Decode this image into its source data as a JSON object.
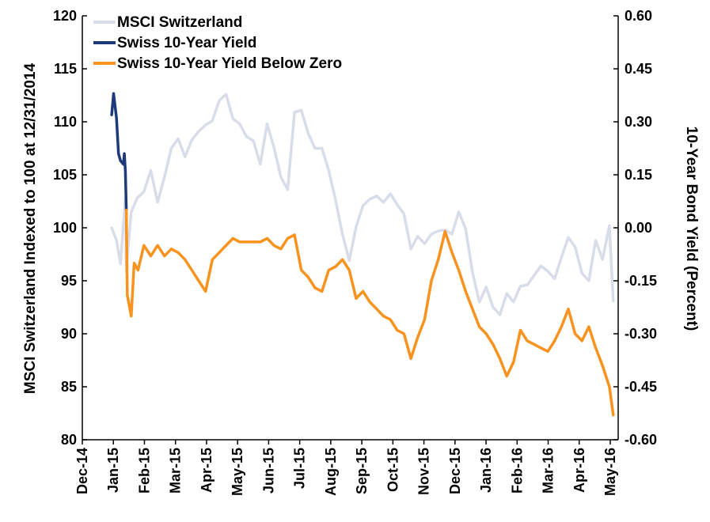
{
  "chart_data": {
    "type": "line",
    "ylabel": "MSCI Switzerland Indexed to 100 at 12/31/2014",
    "y2label": "10-Year Bond Yield  (Percent)",
    "ylim": [
      80,
      120
    ],
    "y2lim": [
      -0.6,
      0.6
    ],
    "y_ticks": [
      "120",
      "115",
      "110",
      "105",
      "100",
      "95",
      "90",
      "85",
      "80"
    ],
    "y2_ticks": [
      "0.60",
      "0.45",
      "0.30",
      "0.15",
      "0.00",
      "-0.15",
      "-0.30",
      "-0.45",
      "-0.60"
    ],
    "x_ticks": [
      "Dec-14",
      "Jan-15",
      "Feb-15",
      "Mar-15",
      "Apr-15",
      "May-15",
      "Jun-15",
      "Jul-15",
      "Aug-15",
      "Sep-15",
      "Oct-15",
      "Nov-15",
      "Dec-15",
      "Jan-16",
      "Feb-16",
      "Mar-16",
      "Apr-16",
      "May-16"
    ],
    "legend_position": "top-left",
    "grid": false,
    "colors": {
      "msci": "#d9dde9",
      "yield_pos": "#1f3a7a",
      "yield_neg": "#f7931e"
    },
    "series": [
      {
        "name": "MSCI Switzerland",
        "axis": "left",
        "x": [
          "2014-12-31",
          "2015-01-05",
          "2015-01-09",
          "2015-01-14",
          "2015-01-15",
          "2015-01-16",
          "2015-01-20",
          "2015-01-26",
          "2015-02-02",
          "2015-02-09",
          "2015-02-16",
          "2015-02-23",
          "2015-03-02",
          "2015-03-09",
          "2015-03-16",
          "2015-03-23",
          "2015-03-30",
          "2015-04-06",
          "2015-04-13",
          "2015-04-20",
          "2015-04-27",
          "2015-05-04",
          "2015-05-11",
          "2015-05-18",
          "2015-05-25",
          "2015-06-01",
          "2015-06-08",
          "2015-06-15",
          "2015-06-22",
          "2015-06-29",
          "2015-07-06",
          "2015-07-13",
          "2015-07-20",
          "2015-07-27",
          "2015-08-03",
          "2015-08-10",
          "2015-08-17",
          "2015-08-24",
          "2015-08-31",
          "2015-09-07",
          "2015-09-14",
          "2015-09-21",
          "2015-09-28",
          "2015-10-05",
          "2015-10-12",
          "2015-10-19",
          "2015-10-26",
          "2015-11-02",
          "2015-11-09",
          "2015-11-16",
          "2015-11-23",
          "2015-11-30",
          "2015-12-07",
          "2015-12-14",
          "2015-12-21",
          "2015-12-28",
          "2016-01-04",
          "2016-01-11",
          "2016-01-18",
          "2016-01-25",
          "2016-02-01",
          "2016-02-08",
          "2016-02-15",
          "2016-02-22",
          "2016-02-29",
          "2016-03-07",
          "2016-03-14",
          "2016-03-21",
          "2016-03-28",
          "2016-04-04",
          "2016-04-11",
          "2016-04-18",
          "2016-04-25",
          "2016-05-02",
          "2016-05-09",
          "2016-05-16",
          "2016-05-23",
          "2016-05-27"
        ],
        "values": [
          100.0,
          98.8,
          96.6,
          102.8,
          95.8,
          97.2,
          101.5,
          102.8,
          103.4,
          105.4,
          102.4,
          104.8,
          107.5,
          108.4,
          106.7,
          108.3,
          109.1,
          109.7,
          110.1,
          112.0,
          112.6,
          110.3,
          109.8,
          108.6,
          108.2,
          106.0,
          109.8,
          107.6,
          104.8,
          103.6,
          110.9,
          111.1,
          108.9,
          107.5,
          107.5,
          105.4,
          102.6,
          99.4,
          96.9,
          100.1,
          102.1,
          102.7,
          103.0,
          102.4,
          103.2,
          102.2,
          101.3,
          98.0,
          99.2,
          98.5,
          99.4,
          99.7,
          99.8,
          99.4,
          101.5,
          99.9,
          95.8,
          93.0,
          94.4,
          92.5,
          91.8,
          93.8,
          93.0,
          94.5,
          94.6,
          95.5,
          96.4,
          95.9,
          95.2,
          97.2,
          99.1,
          98.2,
          95.7,
          95.0,
          98.8,
          97.0,
          100.2,
          93.1
        ]
      },
      {
        "name": "Swiss 10-Year Yield",
        "axis": "right",
        "x": [
          "2014-12-31",
          "2015-01-02",
          "2015-01-05",
          "2015-01-07",
          "2015-01-09",
          "2015-01-12",
          "2015-01-13",
          "2015-01-14",
          "2015-01-15"
        ],
        "values": [
          0.32,
          0.38,
          0.31,
          0.21,
          0.19,
          0.18,
          0.21,
          0.16,
          0.05
        ]
      },
      {
        "name": "Swiss 10-Year Yield Below Zero",
        "axis": "right",
        "x": [
          "2015-01-16",
          "2015-01-20",
          "2015-01-23",
          "2015-01-27",
          "2015-02-02",
          "2015-02-09",
          "2015-02-16",
          "2015-02-23",
          "2015-03-02",
          "2015-03-09",
          "2015-03-16",
          "2015-03-23",
          "2015-03-30",
          "2015-04-06",
          "2015-04-13",
          "2015-04-20",
          "2015-04-27",
          "2015-05-04",
          "2015-05-11",
          "2015-05-18",
          "2015-05-25",
          "2015-06-01",
          "2015-06-08",
          "2015-06-15",
          "2015-06-22",
          "2015-06-29",
          "2015-07-06",
          "2015-07-13",
          "2015-07-20",
          "2015-07-27",
          "2015-08-03",
          "2015-08-10",
          "2015-08-17",
          "2015-08-24",
          "2015-08-31",
          "2015-09-07",
          "2015-09-14",
          "2015-09-21",
          "2015-09-28",
          "2015-10-05",
          "2015-10-12",
          "2015-10-19",
          "2015-10-26",
          "2015-11-02",
          "2015-11-09",
          "2015-11-16",
          "2015-11-23",
          "2015-11-30",
          "2015-12-07",
          "2015-12-14",
          "2015-12-21",
          "2015-12-28",
          "2016-01-04",
          "2016-01-11",
          "2016-01-18",
          "2016-01-25",
          "2016-02-01",
          "2016-02-08",
          "2016-02-15",
          "2016-02-22",
          "2016-02-29",
          "2016-03-07",
          "2016-03-14",
          "2016-03-21",
          "2016-03-28",
          "2016-04-04",
          "2016-04-11",
          "2016-04-18",
          "2016-04-25",
          "2016-05-02",
          "2016-05-09",
          "2016-05-16",
          "2016-05-23",
          "2016-05-27"
        ],
        "values": [
          -0.19,
          -0.25,
          -0.1,
          -0.12,
          -0.05,
          -0.08,
          -0.05,
          -0.08,
          -0.06,
          -0.07,
          -0.09,
          -0.12,
          -0.15,
          -0.18,
          -0.09,
          -0.07,
          -0.05,
          -0.03,
          -0.04,
          -0.04,
          -0.04,
          -0.04,
          -0.03,
          -0.05,
          -0.06,
          -0.03,
          -0.02,
          -0.12,
          -0.14,
          -0.17,
          -0.18,
          -0.12,
          -0.11,
          -0.09,
          -0.12,
          -0.2,
          -0.18,
          -0.21,
          -0.23,
          -0.25,
          -0.26,
          -0.29,
          -0.3,
          -0.37,
          -0.31,
          -0.26,
          -0.15,
          -0.09,
          -0.01,
          -0.07,
          -0.12,
          -0.18,
          -0.23,
          -0.28,
          -0.3,
          -0.33,
          -0.37,
          -0.42,
          -0.38,
          -0.29,
          -0.32,
          -0.33,
          -0.34,
          -0.35,
          -0.32,
          -0.28,
          -0.23,
          -0.3,
          -0.32,
          -0.28,
          -0.34,
          -0.39,
          -0.45,
          -0.53
        ]
      }
    ]
  }
}
